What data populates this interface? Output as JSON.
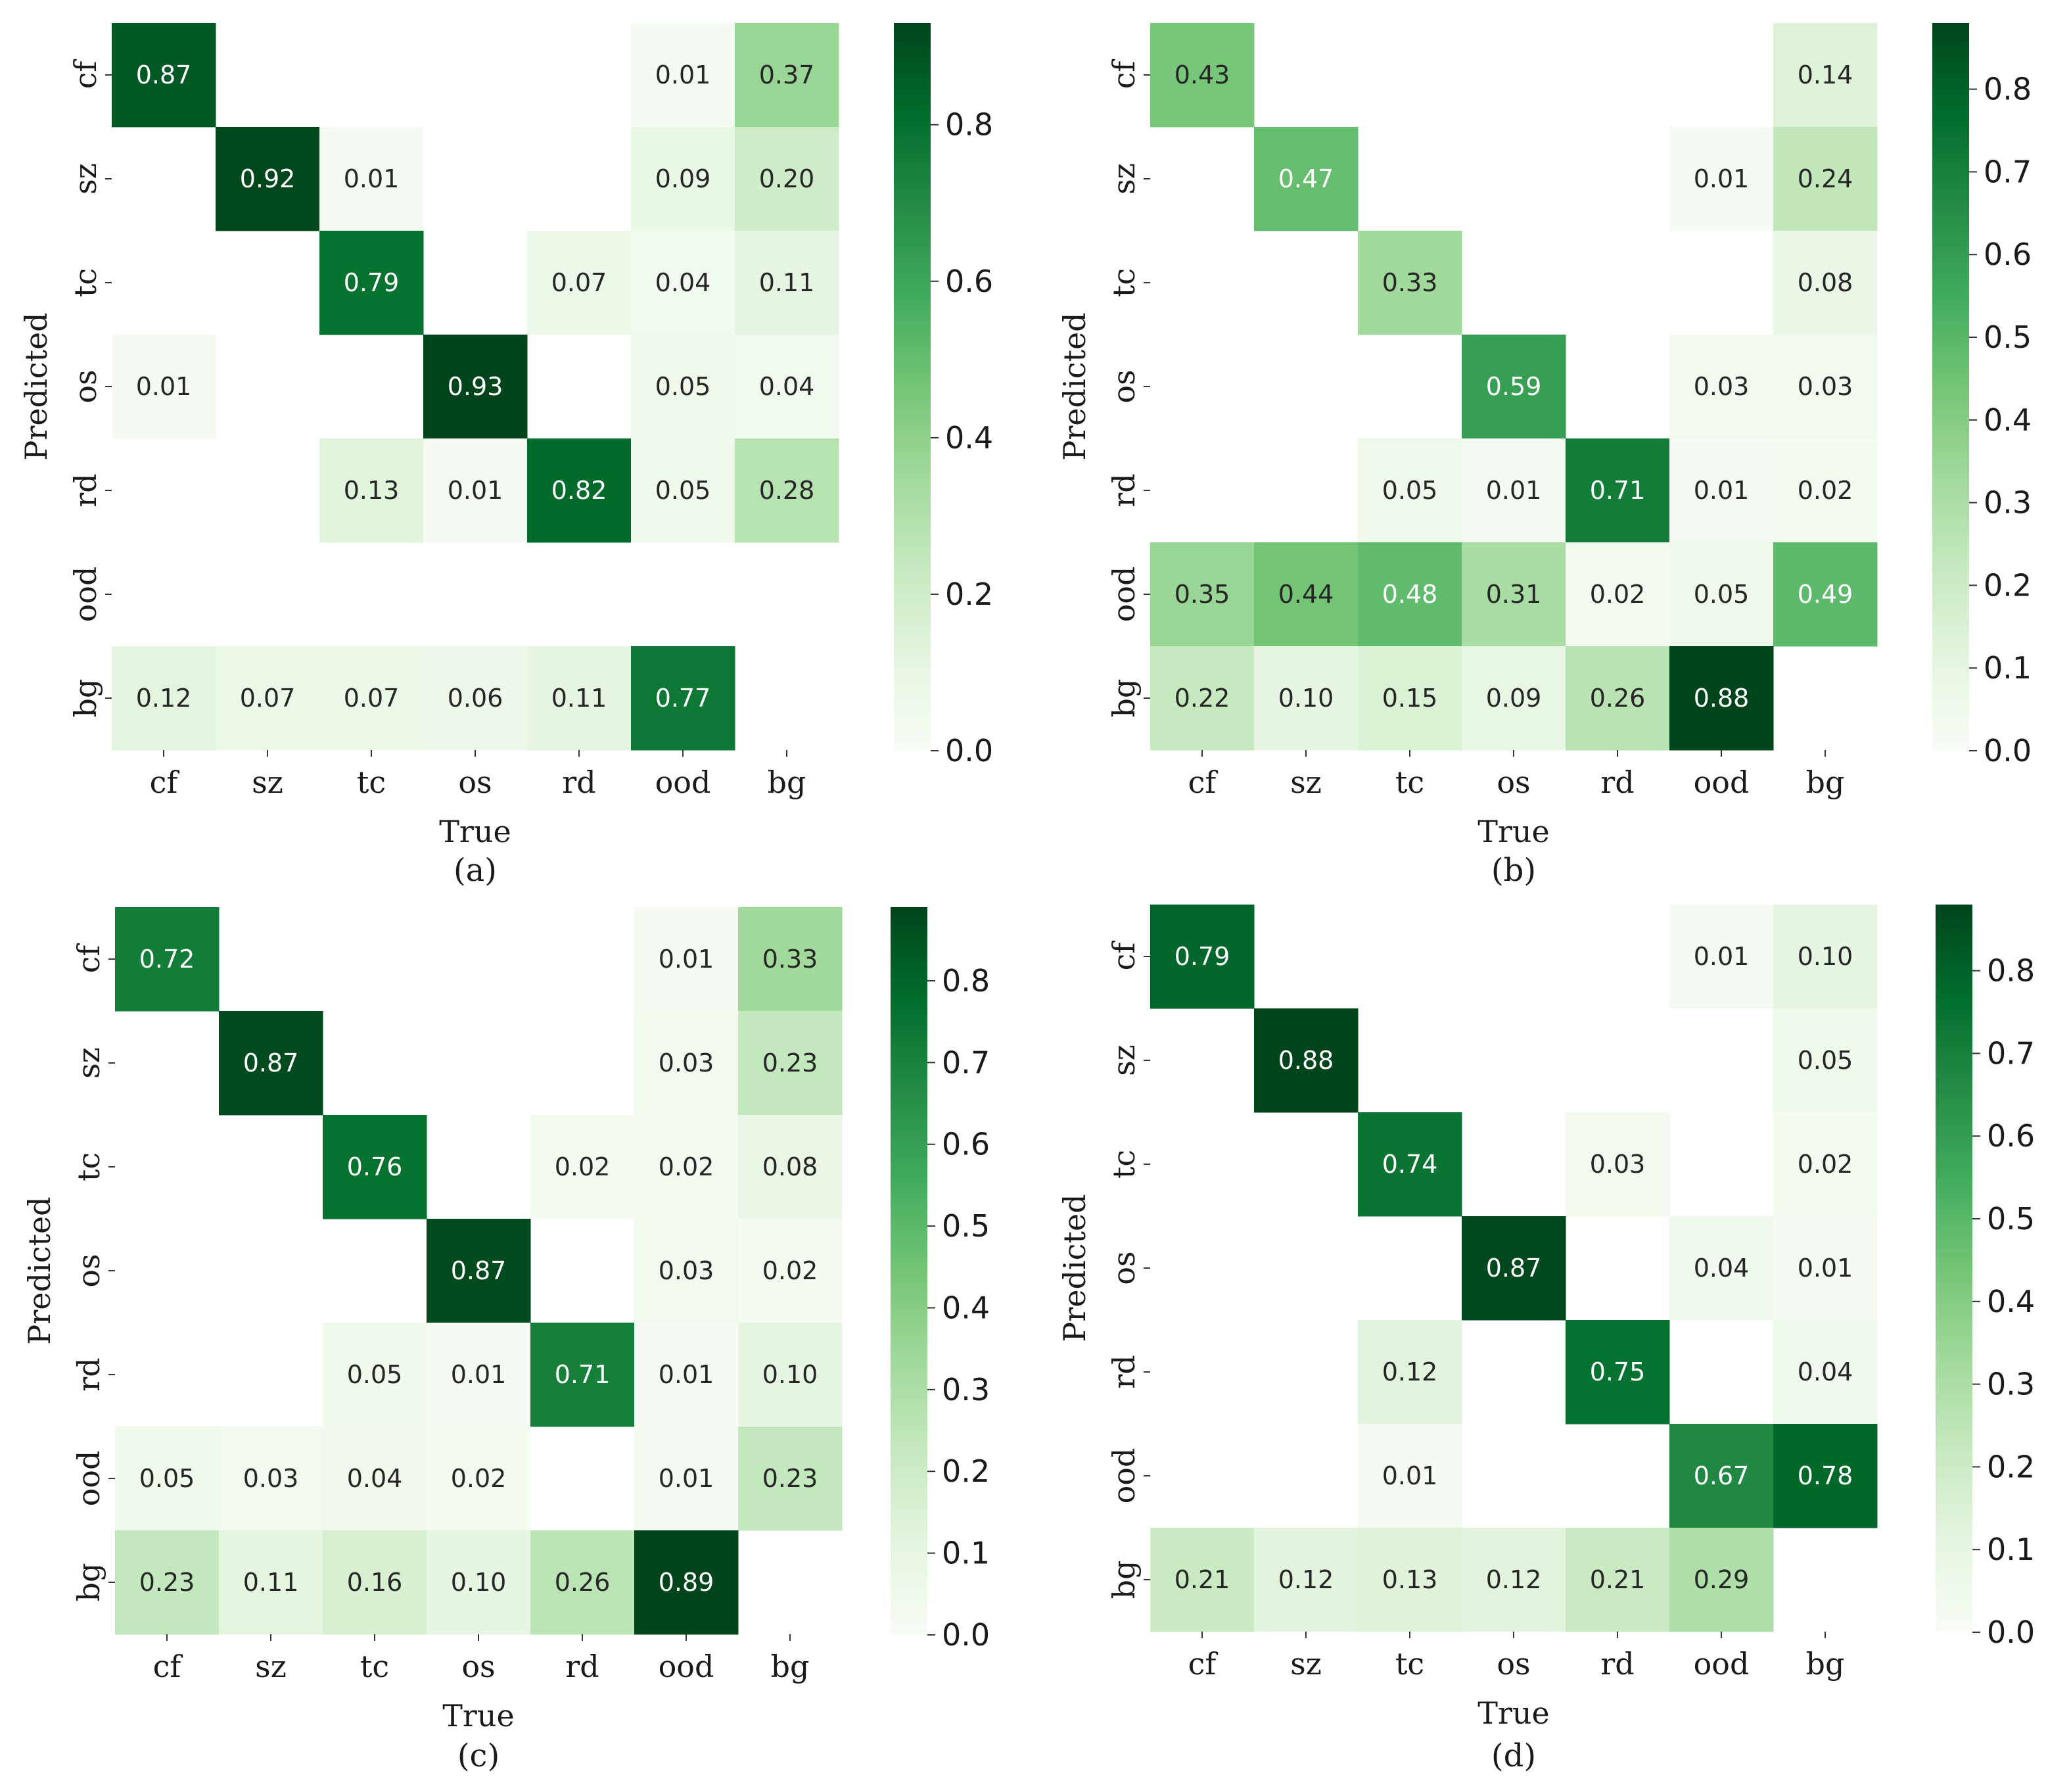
{
  "chart_data": [
    {
      "type": "heatmap",
      "panel_label": "(a)",
      "xlabel": "True",
      "ylabel": "Predicted",
      "x_categories": [
        "cf",
        "sz",
        "tc",
        "os",
        "rd",
        "ood",
        "bg"
      ],
      "y_categories": [
        "cf",
        "sz",
        "tc",
        "os",
        "rd",
        "ood",
        "bg"
      ],
      "values": [
        [
          0.87,
          null,
          null,
          null,
          null,
          0.01,
          0.37
        ],
        [
          null,
          0.92,
          0.01,
          null,
          null,
          0.09,
          0.2
        ],
        [
          null,
          null,
          0.79,
          null,
          0.07,
          0.04,
          0.11
        ],
        [
          0.01,
          null,
          null,
          0.93,
          null,
          0.05,
          0.04
        ],
        [
          null,
          null,
          0.13,
          0.01,
          0.82,
          0.05,
          0.28
        ],
        [
          null,
          null,
          null,
          null,
          null,
          null,
          null
        ],
        [
          0.12,
          0.07,
          0.07,
          0.06,
          0.11,
          0.77,
          null
        ]
      ],
      "colorbar": {
        "min": 0,
        "max": 0.93,
        "ticks": [
          "0.0",
          "0.2",
          "0.4",
          "0.6",
          "0.8"
        ],
        "colormap": "Greens"
      }
    },
    {
      "type": "heatmap",
      "panel_label": "(b)",
      "xlabel": "True",
      "ylabel": "Predicted",
      "x_categories": [
        "cf",
        "sz",
        "tc",
        "os",
        "rd",
        "ood",
        "bg"
      ],
      "y_categories": [
        "cf",
        "sz",
        "tc",
        "os",
        "rd",
        "ood",
        "bg"
      ],
      "values": [
        [
          0.43,
          null,
          null,
          null,
          null,
          null,
          0.14
        ],
        [
          null,
          0.47,
          null,
          null,
          null,
          0.01,
          0.24
        ],
        [
          null,
          null,
          0.33,
          null,
          null,
          null,
          0.08
        ],
        [
          null,
          null,
          null,
          0.59,
          null,
          0.03,
          0.03
        ],
        [
          null,
          null,
          0.05,
          0.01,
          0.71,
          0.01,
          0.02
        ],
        [
          0.35,
          0.44,
          0.48,
          0.31,
          0.02,
          0.05,
          0.49
        ],
        [
          0.22,
          0.1,
          0.15,
          0.09,
          0.26,
          0.88,
          null
        ]
      ],
      "colorbar": {
        "min": 0,
        "max": 0.88,
        "ticks": [
          "0.0",
          "0.1",
          "0.2",
          "0.3",
          "0.4",
          "0.5",
          "0.6",
          "0.7",
          "0.8"
        ],
        "colormap": "Greens"
      }
    },
    {
      "type": "heatmap",
      "panel_label": "(c)",
      "xlabel": "True",
      "ylabel": "Predicted",
      "x_categories": [
        "cf",
        "sz",
        "tc",
        "os",
        "rd",
        "ood",
        "bg"
      ],
      "y_categories": [
        "cf",
        "sz",
        "tc",
        "os",
        "rd",
        "ood",
        "bg"
      ],
      "values": [
        [
          0.72,
          null,
          null,
          null,
          null,
          0.01,
          0.33
        ],
        [
          null,
          0.87,
          null,
          null,
          null,
          0.03,
          0.23
        ],
        [
          null,
          null,
          0.76,
          null,
          0.02,
          0.02,
          0.08
        ],
        [
          null,
          null,
          null,
          0.87,
          null,
          0.03,
          0.02
        ],
        [
          null,
          null,
          0.05,
          0.01,
          0.71,
          0.01,
          0.1
        ],
        [
          0.05,
          0.03,
          0.04,
          0.02,
          null,
          0.01,
          0.23
        ],
        [
          0.23,
          0.11,
          0.16,
          0.1,
          0.26,
          0.89,
          null
        ]
      ],
      "colorbar": {
        "min": 0,
        "max": 0.89,
        "ticks": [
          "0.0",
          "0.1",
          "0.2",
          "0.3",
          "0.4",
          "0.5",
          "0.6",
          "0.7",
          "0.8"
        ],
        "colormap": "Greens"
      }
    },
    {
      "type": "heatmap",
      "panel_label": "(d)",
      "xlabel": "True",
      "ylabel": "Predicted",
      "x_categories": [
        "cf",
        "sz",
        "tc",
        "os",
        "rd",
        "ood",
        "bg"
      ],
      "y_categories": [
        "cf",
        "sz",
        "tc",
        "os",
        "rd",
        "ood",
        "bg"
      ],
      "values": [
        [
          0.79,
          null,
          null,
          null,
          null,
          0.01,
          0.1
        ],
        [
          null,
          0.88,
          null,
          null,
          null,
          null,
          0.05
        ],
        [
          null,
          null,
          0.74,
          null,
          0.03,
          null,
          0.02
        ],
        [
          null,
          null,
          null,
          0.87,
          null,
          0.04,
          0.01
        ],
        [
          null,
          null,
          0.12,
          null,
          0.75,
          null,
          0.04
        ],
        [
          null,
          null,
          0.01,
          null,
          null,
          0.67,
          0.78
        ],
        [
          0.21,
          0.12,
          0.13,
          0.12,
          0.21,
          0.29,
          null
        ]
      ],
      "colorbar": {
        "min": 0,
        "max": 0.88,
        "ticks": [
          "0.0",
          "0.1",
          "0.2",
          "0.3",
          "0.4",
          "0.5",
          "0.6",
          "0.7",
          "0.8"
        ],
        "colormap": "Greens"
      }
    }
  ]
}
